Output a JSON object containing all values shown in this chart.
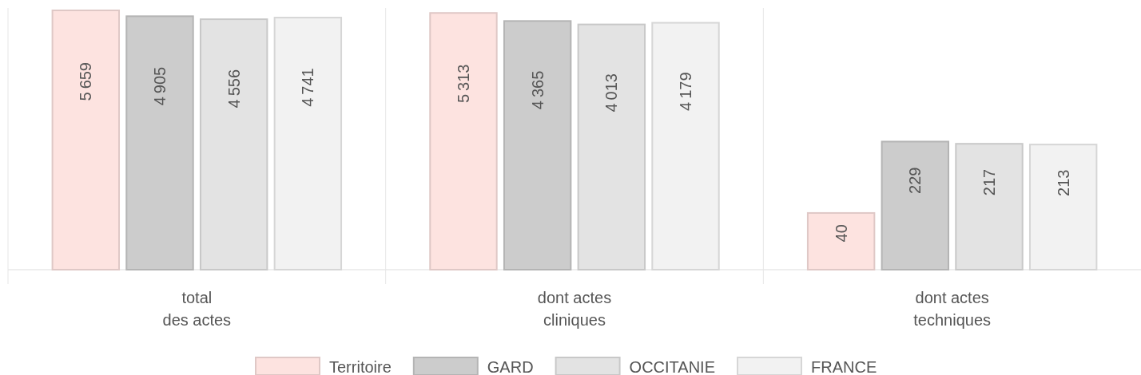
{
  "chart_data": {
    "type": "bar",
    "categories": [
      "total\ndes actes",
      "dont actes\ncliniques",
      "dont actes\ntechniques"
    ],
    "series": [
      {
        "name": "Territoire",
        "color": "#fde3e0",
        "values": [
          5659,
          5313,
          40
        ]
      },
      {
        "name": "GARD",
        "color": "#cccccc",
        "values": [
          4905,
          4365,
          229
        ]
      },
      {
        "name": "OCCITANIE",
        "color": "#e3e3e3",
        "values": [
          4556,
          4013,
          217
        ]
      },
      {
        "name": "FRANCE",
        "color": "#f2f2f2",
        "values": [
          4741,
          4179,
          213
        ]
      }
    ],
    "log": true,
    "ylim": [
      10,
      6000
    ],
    "data_labels": true,
    "legend": "bottom",
    "tick_labels": "x"
  }
}
